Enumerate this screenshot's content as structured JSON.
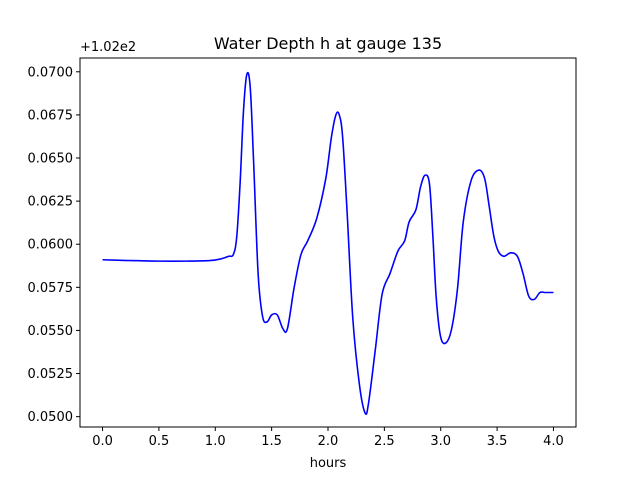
{
  "chart_data": {
    "type": "line",
    "title": "Water Depth h at gauge 135",
    "xlabel": "hours",
    "ylabel": "",
    "y_offset_label": "+1.02e2",
    "xlim": [
      -0.2,
      4.2
    ],
    "ylim": [
      0.0494,
      0.0708
    ],
    "xticks": [
      0.0,
      0.5,
      1.0,
      1.5,
      2.0,
      2.5,
      3.0,
      3.5,
      4.0
    ],
    "xtick_labels": [
      "0.0",
      "0.5",
      "1.0",
      "1.5",
      "2.0",
      "2.5",
      "3.0",
      "3.5",
      "4.0"
    ],
    "yticks": [
      0.05,
      0.0525,
      0.055,
      0.0575,
      0.06,
      0.0625,
      0.065,
      0.0675,
      0.07
    ],
    "ytick_labels": [
      "0.0500",
      "0.0525",
      "0.0550",
      "0.0575",
      "0.0600",
      "0.0625",
      "0.0650",
      "0.0675",
      "0.0700"
    ],
    "grid": false,
    "series": [
      {
        "color": "#0000ff",
        "x": [
          0.0,
          0.25,
          0.5,
          0.75,
          0.95,
          1.05,
          1.12,
          1.16,
          1.19,
          1.22,
          1.25,
          1.28,
          1.31,
          1.34,
          1.38,
          1.42,
          1.46,
          1.5,
          1.55,
          1.6,
          1.64,
          1.7,
          1.76,
          1.82,
          1.9,
          1.98,
          2.03,
          2.07,
          2.1,
          2.13,
          2.17,
          2.22,
          2.28,
          2.33,
          2.36,
          2.42,
          2.48,
          2.55,
          2.62,
          2.68,
          2.72,
          2.78,
          2.82,
          2.86,
          2.9,
          2.93,
          2.96,
          3.0,
          3.05,
          3.1,
          3.15,
          3.2,
          3.27,
          3.34,
          3.39,
          3.43,
          3.47,
          3.51,
          3.56,
          3.62,
          3.68,
          3.73,
          3.78,
          3.83,
          3.88,
          3.93,
          4.0
        ],
        "y": [
          0.0591,
          0.05905,
          0.05902,
          0.05902,
          0.05905,
          0.05915,
          0.0593,
          0.0594,
          0.0604,
          0.0635,
          0.0677,
          0.06985,
          0.0691,
          0.0648,
          0.0583,
          0.0558,
          0.0555,
          0.0559,
          0.0559,
          0.0551,
          0.0551,
          0.0575,
          0.0594,
          0.0602,
          0.0615,
          0.0638,
          0.0662,
          0.0675,
          0.0675,
          0.0662,
          0.0618,
          0.0557,
          0.0518,
          0.0502,
          0.0508,
          0.0539,
          0.0571,
          0.0583,
          0.0596,
          0.0602,
          0.0613,
          0.062,
          0.0633,
          0.064,
          0.0635,
          0.0605,
          0.0569,
          0.0546,
          0.0543,
          0.0552,
          0.0575,
          0.0613,
          0.0637,
          0.0643,
          0.0638,
          0.0622,
          0.0605,
          0.0596,
          0.0593,
          0.0595,
          0.0593,
          0.0583,
          0.057,
          0.0568,
          0.0572,
          0.0572,
          0.0572
        ]
      }
    ]
  }
}
